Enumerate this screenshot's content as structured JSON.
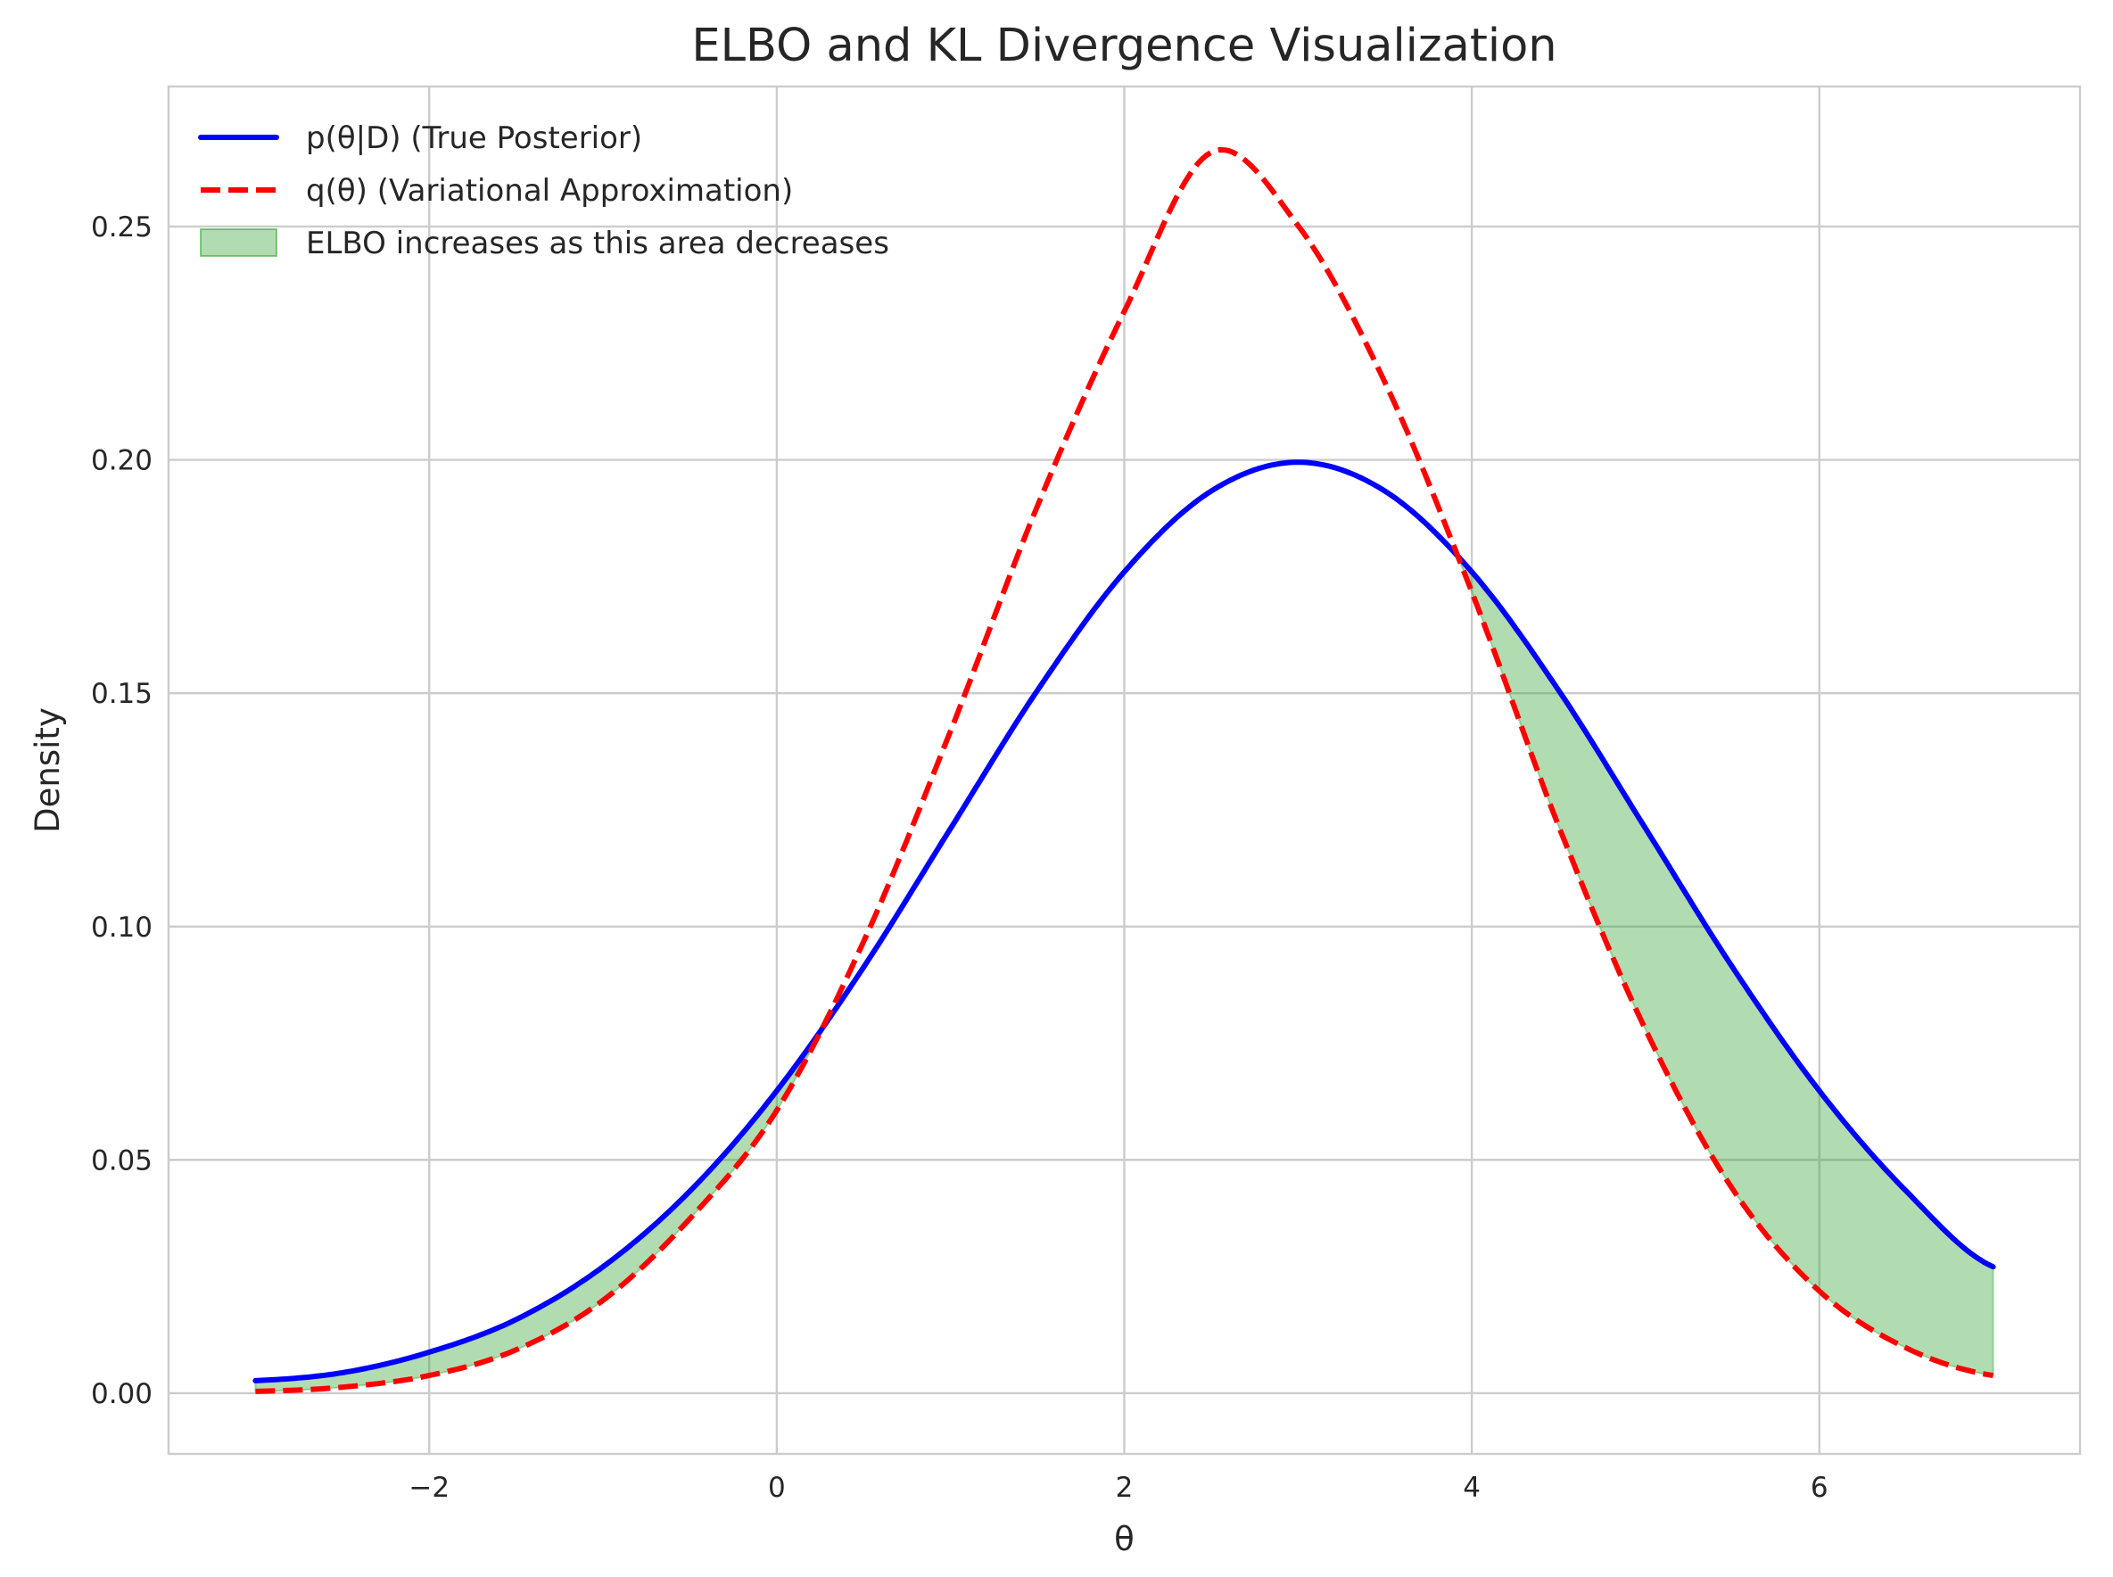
{
  "chart_data": {
    "type": "line",
    "title": "ELBO and KL Divergence Visualization",
    "xlabel": "θ",
    "ylabel": "Density",
    "xlim": [
      -3.5,
      7.5
    ],
    "ylim": [
      -0.013,
      0.28
    ],
    "grid": true,
    "legend_position": "top-left",
    "x_ticks": [
      -2,
      0,
      2,
      4,
      6
    ],
    "x_tick_labels": [
      "−2",
      "0",
      "2",
      "4",
      "6"
    ],
    "y_ticks": [
      0.0,
      0.05,
      0.1,
      0.15,
      0.2,
      0.25
    ],
    "y_tick_labels": [
      "0.00",
      "0.05",
      "0.10",
      "0.15",
      "0.20",
      "0.25"
    ],
    "x": [
      -3.0,
      -2.5,
      -2.0,
      -1.5,
      -1.0,
      -0.5,
      0.0,
      0.5,
      1.0,
      1.5,
      2.0,
      2.5,
      3.0,
      3.5,
      4.0,
      4.5,
      5.0,
      5.5,
      6.0,
      6.5,
      7.0
    ],
    "series": [
      {
        "name": "p(θ|D) (True Posterior)",
        "color": "#0000ff",
        "style": "solid",
        "values": [
          0.0027,
          0.0044,
          0.0088,
          0.0158,
          0.0271,
          0.0433,
          0.0648,
          0.0913,
          0.121,
          0.1506,
          0.176,
          0.1933,
          0.1995,
          0.1933,
          0.176,
          0.1506,
          0.121,
          0.0913,
          0.0648,
          0.0433,
          0.0271
        ]
      },
      {
        "name": "q(θ) (Variational Approximation)",
        "color": "#ff0000",
        "style": "dashed",
        "values": [
          0.0004,
          0.0013,
          0.0038,
          0.0093,
          0.0199,
          0.0374,
          0.0606,
          0.0968,
          0.1419,
          0.1901,
          0.2318,
          0.2659,
          0.2502,
          0.2166,
          0.1717,
          0.1215,
          0.0779,
          0.0438,
          0.0219,
          0.0097,
          0.0038
        ]
      }
    ],
    "fill_between": {
      "label": "ELBO increases as this area decreases",
      "color": "#2ca02c",
      "alpha": 0.37
    }
  }
}
